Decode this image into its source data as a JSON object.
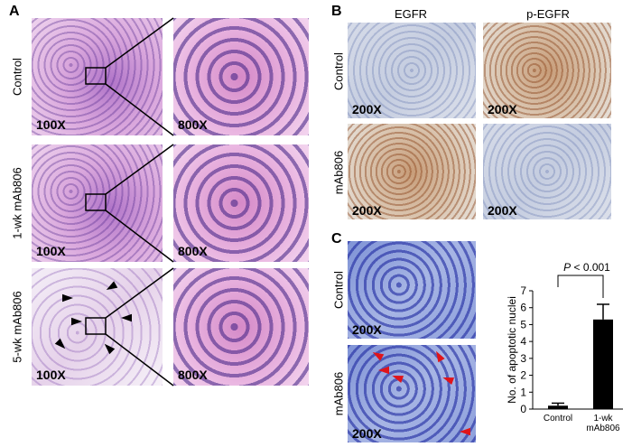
{
  "panels": {
    "A": {
      "label": "A",
      "rows": [
        "Control",
        "1-wk mAb806",
        "5-wk mAb806"
      ],
      "magnifications": [
        "100X",
        "800X"
      ]
    },
    "B": {
      "label": "B",
      "columns": [
        "EGFR",
        "p-EGFR"
      ],
      "rows": [
        "Control",
        "mAb806"
      ],
      "magnification": "200X"
    },
    "C": {
      "label": "C",
      "rows": [
        "Control",
        "mAb806"
      ],
      "magnification": "200X"
    }
  },
  "chart_data": {
    "type": "bar",
    "categories": [
      "Control",
      "1-wk mAb806"
    ],
    "values": [
      0.2,
      5.3
    ],
    "errors": [
      0.15,
      0.9
    ],
    "color": "#000000",
    "ylabel": "No. of apoptotic nuclei",
    "ylim": [
      0,
      7
    ],
    "yticks": [
      0,
      1,
      2,
      3,
      4,
      5,
      6,
      7
    ],
    "annotation": {
      "symbol": "P",
      "text": "< 0.001"
    }
  }
}
